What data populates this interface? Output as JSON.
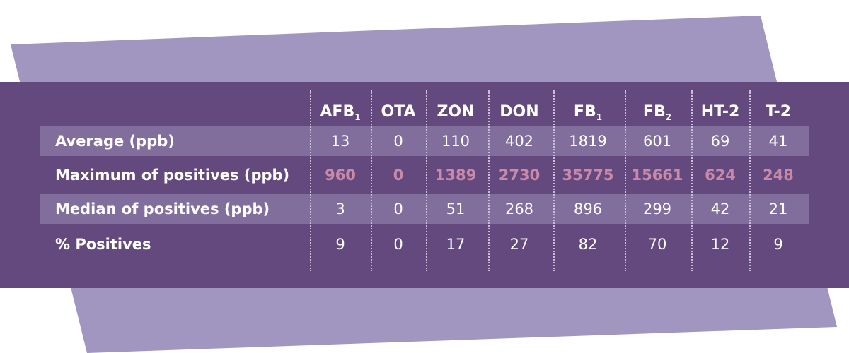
{
  "colors": {
    "background_shape": "#a196c0",
    "panel": "#63497e",
    "row_band": "#816e9d",
    "text": "#ffffff",
    "highlight_text": "#c88aa8",
    "separator": "#c9bfd9"
  },
  "table": {
    "columns": [
      {
        "main": "AFB",
        "sub": "1"
      },
      {
        "main": "OTA",
        "sub": ""
      },
      {
        "main": "ZON",
        "sub": ""
      },
      {
        "main": "DON",
        "sub": ""
      },
      {
        "main": "FB",
        "sub": "1"
      },
      {
        "main": "FB",
        "sub": "2"
      },
      {
        "main": "HT-2",
        "sub": ""
      },
      {
        "main": "T-2",
        "sub": ""
      }
    ],
    "rows": [
      {
        "label": "Average (ppb)",
        "values": [
          "13",
          "0",
          "110",
          "402",
          "1819",
          "601",
          "69",
          "41"
        ],
        "banded": true,
        "highlight": false
      },
      {
        "label": "Maximum of positives (ppb)",
        "values": [
          "960",
          "0",
          "1389",
          "2730",
          "35775",
          "15661",
          "624",
          "248"
        ],
        "banded": false,
        "highlight": true
      },
      {
        "label": "Median of positives (ppb)",
        "values": [
          "3",
          "0",
          "51",
          "268",
          "896",
          "299",
          "42",
          "21"
        ],
        "banded": true,
        "highlight": false
      },
      {
        "label": "% Positives",
        "values": [
          "9",
          "0",
          "17",
          "27",
          "82",
          "70",
          "12",
          "9"
        ],
        "banded": false,
        "highlight": false
      }
    ]
  }
}
